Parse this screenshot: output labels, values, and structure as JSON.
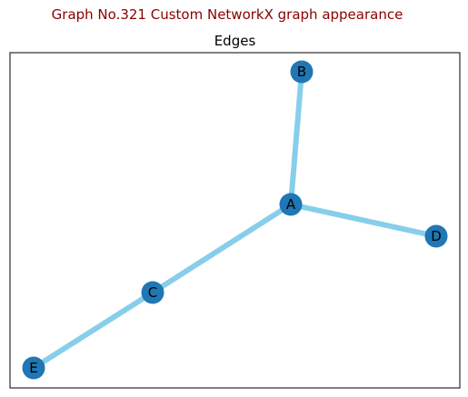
{
  "figure": {
    "suptitle": "Graph No.321 Custom NetworkX graph appearance",
    "title": "Edges"
  },
  "graph": {
    "node_color": "#1f77b4",
    "edge_color": "#87ceeb",
    "frame_color": "#000000",
    "nodes": [
      {
        "id": "A",
        "label": "A"
      },
      {
        "id": "B",
        "label": "B"
      },
      {
        "id": "C",
        "label": "C"
      },
      {
        "id": "D",
        "label": "D"
      },
      {
        "id": "E",
        "label": "E"
      }
    ],
    "edges": [
      {
        "source": "A",
        "target": "B"
      },
      {
        "source": "A",
        "target": "C"
      },
      {
        "source": "A",
        "target": "D"
      },
      {
        "source": "C",
        "target": "E"
      }
    ]
  }
}
